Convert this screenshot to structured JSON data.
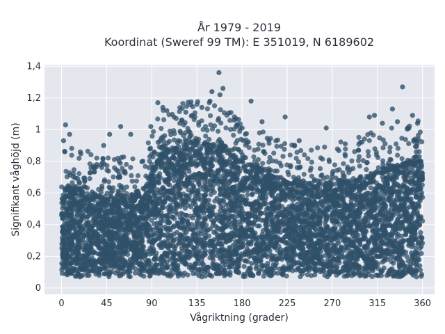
{
  "chart_data": {
    "type": "scatter",
    "title_line1": "År 1979 - 2019",
    "title_line2": "Koordinat (Sweref 99 TM): E 351019, N 6189602",
    "xlabel": "Vågriktning (grader)",
    "ylabel": "Signifikant våghöjd (m)",
    "xlim": [
      -17,
      372
    ],
    "ylim": [
      -0.04,
      1.41
    ],
    "xticks": [
      0,
      45,
      90,
      135,
      180,
      225,
      270,
      315,
      360
    ],
    "xtick_labels": [
      "0",
      "45",
      "90",
      "135",
      "180",
      "225",
      "270",
      "315",
      "360"
    ],
    "yticks": [
      0,
      0.2,
      0.4,
      0.6,
      0.8,
      1.0,
      1.2,
      1.4
    ],
    "ytick_labels": [
      "0",
      "0,2",
      "0,4",
      "0,6",
      "0,8",
      "1",
      "1,2",
      "1,4"
    ],
    "grid": true,
    "colors": {
      "marker": "#2f5068",
      "plot_bg": "#e5e7ef",
      "grid": "#ffffff"
    },
    "envelope": {
      "x": [
        0,
        20,
        45,
        80,
        100,
        135,
        160,
        180,
        225,
        250,
        300,
        315,
        345,
        360
      ],
      "y_max": [
        0.62,
        0.62,
        0.55,
        0.58,
        0.85,
        0.92,
        0.88,
        0.78,
        0.66,
        0.63,
        0.68,
        0.72,
        0.78,
        0.8
      ],
      "y_min": [
        0.07,
        0.07,
        0.07,
        0.07,
        0.07,
        0.07,
        0.07,
        0.07,
        0.07,
        0.07,
        0.07,
        0.07,
        0.07,
        0.07
      ]
    },
    "outliers": [
      {
        "x": 157,
        "y": 1.36
      },
      {
        "x": 161,
        "y": 1.26
      },
      {
        "x": 158,
        "y": 1.22
      },
      {
        "x": 150,
        "y": 1.24
      },
      {
        "x": 148,
        "y": 1.18
      },
      {
        "x": 189,
        "y": 1.18
      },
      {
        "x": 340,
        "y": 1.27
      },
      {
        "x": 4,
        "y": 1.03
      },
      {
        "x": 8,
        "y": 0.97
      },
      {
        "x": 96,
        "y": 1.17
      },
      {
        "x": 101,
        "y": 1.14
      },
      {
        "x": 124,
        "y": 1.11
      },
      {
        "x": 140,
        "y": 1.14
      },
      {
        "x": 330,
        "y": 1.13
      },
      {
        "x": 307,
        "y": 1.08
      },
      {
        "x": 312,
        "y": 1.09
      },
      {
        "x": 350,
        "y": 1.09
      },
      {
        "x": 355,
        "y": 1.04
      },
      {
        "x": 264,
        "y": 1.01
      },
      {
        "x": 223,
        "y": 1.08
      },
      {
        "x": 48,
        "y": 0.97
      },
      {
        "x": 59,
        "y": 1.02
      },
      {
        "x": 89,
        "y": 1.02
      },
      {
        "x": 200,
        "y": 1.05
      },
      {
        "x": 335,
        "y": 1.05
      },
      {
        "x": 320,
        "y": 1.04
      },
      {
        "x": 2,
        "y": 0.93
      },
      {
        "x": 42,
        "y": 0.9
      },
      {
        "x": 69,
        "y": 0.97
      },
      {
        "x": 105,
        "y": 1.12
      },
      {
        "x": 118,
        "y": 1.04
      },
      {
        "x": 172,
        "y": 1.06
      },
      {
        "x": 237,
        "y": 0.93
      },
      {
        "x": 283,
        "y": 0.91
      },
      {
        "x": 296,
        "y": 0.87
      },
      {
        "x": 345,
        "y": 1.01
      }
    ]
  }
}
